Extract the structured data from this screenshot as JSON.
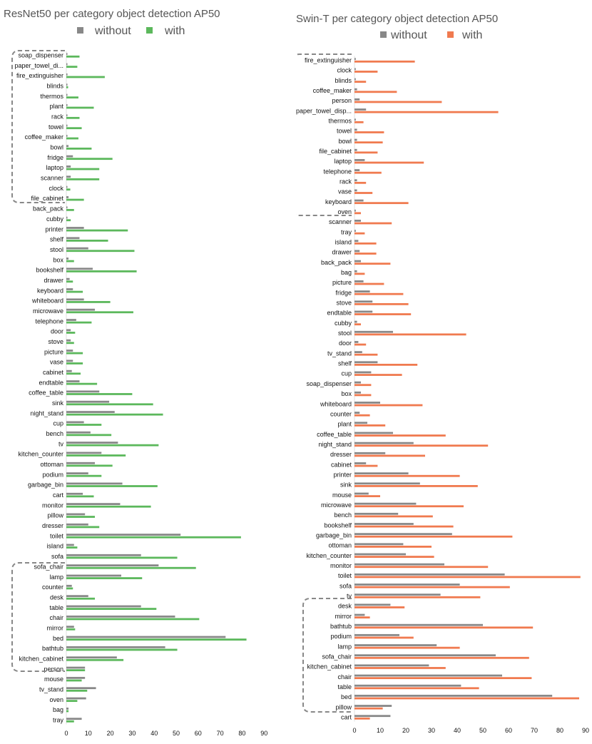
{
  "chart_data": [
    {
      "type": "bar",
      "orientation": "horizontal",
      "title": "ResNet50 per category object detection AP50",
      "xlim": [
        0,
        90
      ],
      "xticks": [
        0,
        10,
        20,
        30,
        40,
        50,
        60,
        70,
        80,
        90
      ],
      "grid": false,
      "legend_position": "top",
      "categories": [
        "soap_dispenser",
        "paper_towel_di...",
        "fire_extinguisher",
        "blinds",
        "thermos",
        "plant",
        "rack",
        "towel",
        "coffee_maker",
        "bowl",
        "fridge",
        "laptop",
        "scanner",
        "clock",
        "file_cabinet",
        "back_pack",
        "cubby",
        "printer",
        "shelf",
        "stool",
        "box",
        "bookshelf",
        "drawer",
        "keyboard",
        "whiteboard",
        "microwave",
        "telephone",
        "door",
        "stove",
        "picture",
        "vase",
        "cabinet",
        "endtable",
        "coffee_table",
        "sink",
        "night_stand",
        "cup",
        "bench",
        "tv",
        "kitchen_counter",
        "ottoman",
        "podium",
        "garbage_bin",
        "cart",
        "monitor",
        "pillow",
        "dresser",
        "toilet",
        "island",
        "sofa",
        "sofa_chair",
        "lamp",
        "counter",
        "desk",
        "table",
        "chair",
        "mirror",
        "bed",
        "bathtub",
        "kitchen_cabinet",
        "person",
        "mouse",
        "tv_stand",
        "oven",
        "bag",
        "tray"
      ],
      "series": [
        {
          "name": "without",
          "color": "#888888",
          "values": [
            0.3,
            0.3,
            0.5,
            0.3,
            0.3,
            0.5,
            0.3,
            0.3,
            0.3,
            1,
            3,
            2,
            2,
            0.3,
            1,
            0.5,
            0.5,
            8,
            6,
            10,
            1,
            12,
            1.5,
            3,
            8,
            13,
            4.5,
            2,
            2,
            3,
            3,
            2.5,
            6,
            15,
            19.5,
            22,
            8,
            11,
            23.5,
            16,
            13,
            10,
            25.5,
            7.5,
            24.5,
            8.5,
            10,
            52,
            3.5,
            34,
            42,
            25,
            2.5,
            10,
            34,
            49.5,
            3.5,
            72.5,
            45,
            23,
            8.5,
            8.5,
            13.5,
            9,
            1,
            7
          ]
        },
        {
          "name": "with",
          "color": "#5cb85c",
          "values": [
            6,
            5,
            17.5,
            0.8,
            5.5,
            12.5,
            6,
            7,
            5.5,
            11.5,
            21,
            15,
            15,
            1.8,
            8,
            3.5,
            2,
            28,
            19,
            31,
            3.5,
            32,
            3,
            7.5,
            20,
            30.5,
            11.5,
            4,
            3.5,
            7.5,
            7.5,
            6.5,
            14,
            30,
            39.5,
            44,
            16,
            20.5,
            42,
            27,
            21,
            16,
            41.5,
            12.5,
            38.5,
            13,
            15,
            79.5,
            5,
            50.5,
            59,
            34.5,
            3,
            13,
            41,
            60.5,
            4,
            82,
            50.5,
            26,
            8.5,
            7,
            9.5,
            5,
            1,
            3.5
          ]
        }
      ]
    },
    {
      "type": "bar",
      "orientation": "horizontal",
      "title": "Swin-T per category object detection AP50",
      "xlim": [
        0,
        90
      ],
      "xticks": [
        0,
        10,
        20,
        30,
        40,
        50,
        60,
        70,
        80,
        90
      ],
      "grid": false,
      "legend_position": "top",
      "categories": [
        "fire_extinguisher",
        "clock",
        "blinds",
        "coffee_maker",
        "person",
        "paper_towel_disp...",
        "thermos",
        "towel",
        "bowl",
        "file_cabinet",
        "laptop",
        "telephone",
        "rack",
        "vase",
        "keyboard",
        "oven",
        "scanner",
        "tray",
        "island",
        "drawer",
        "back_pack",
        "bag",
        "picture",
        "fridge",
        "stove",
        "endtable",
        "cubby",
        "stool",
        "door",
        "tv_stand",
        "shelf",
        "cup",
        "soap_dispenser",
        "box",
        "whiteboard",
        "counter",
        "plant",
        "coffee_table",
        "night_stand",
        "dresser",
        "cabinet",
        "printer",
        "sink",
        "mouse",
        "microwave",
        "bench",
        "bookshelf",
        "garbage_bin",
        "ottoman",
        "kitchen_counter",
        "monitor",
        "toilet",
        "sofa",
        "tv",
        "desk",
        "mirror",
        "bathtub",
        "podium",
        "lamp",
        "sofa_chair",
        "kitchen_cabinet",
        "chair",
        "table",
        "bed",
        "pillow",
        "cart"
      ],
      "series": [
        {
          "name": "without",
          "color": "#888888",
          "values": [
            0.5,
            0.5,
            0.5,
            1,
            2,
            4.5,
            0.5,
            1,
            1,
            1,
            4,
            2,
            1,
            1,
            3.5,
            0.5,
            2.5,
            0.5,
            1.5,
            2,
            2.5,
            1,
            3.5,
            6,
            7,
            7,
            1,
            15,
            1.5,
            3,
            9,
            6.5,
            2.5,
            2.5,
            10,
            2,
            5,
            15,
            23,
            12,
            4.5,
            21,
            25.5,
            5.5,
            24,
            17,
            23,
            38,
            19,
            20,
            35,
            58.5,
            41,
            33.5,
            14,
            4,
            50,
            17.5,
            32,
            55,
            29,
            57.5,
            41.5,
            77,
            14.5,
            14
          ]
        },
        {
          "name": "with",
          "color": "#f07a4f",
          "values": [
            23.5,
            9,
            4.5,
            16.5,
            34,
            56,
            3.5,
            11.5,
            11,
            9,
            27,
            10.5,
            4.5,
            7,
            21,
            2.5,
            14.5,
            4,
            8.5,
            8.5,
            14,
            4,
            11.5,
            19,
            21,
            22,
            2.5,
            43.5,
            4.5,
            9,
            24.5,
            18.5,
            6.5,
            6.5,
            26.5,
            6,
            12,
            35.5,
            52,
            27.5,
            9,
            41,
            48,
            10,
            42.5,
            30.5,
            38.5,
            61.5,
            30,
            31,
            52,
            88,
            60.5,
            49,
            19.5,
            6,
            69.5,
            23,
            41,
            68,
            35.5,
            69,
            48.5,
            87.5,
            11,
            6
          ]
        }
      ]
    }
  ]
}
